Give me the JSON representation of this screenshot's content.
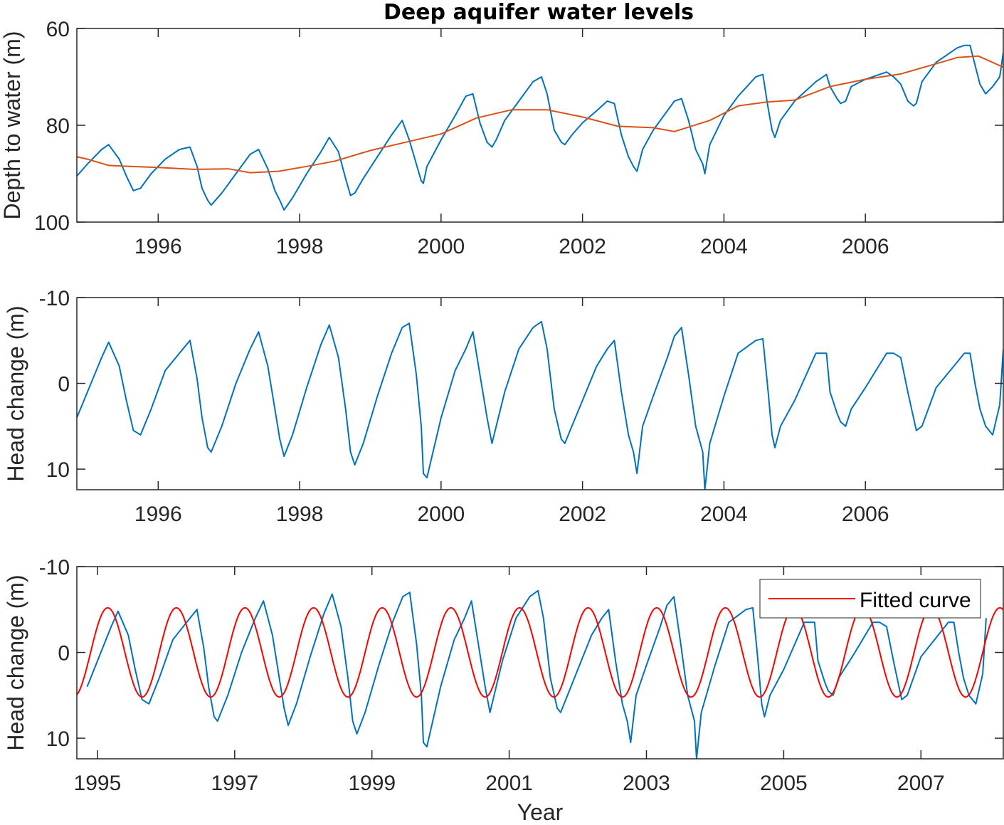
{
  "figure": {
    "title": "Deep aquifer water levels"
  },
  "chart_data": [
    {
      "type": "line",
      "title": "Deep aquifer water levels",
      "xlabel": "",
      "ylabel": "Depth to water (m)",
      "xlim": [
        1994.85,
        2007.95
      ],
      "ylim": [
        60,
        100
      ],
      "y_reversed": true,
      "xticks": [
        1996,
        1998,
        2000,
        2002,
        2004,
        2006
      ],
      "yticks": [
        60,
        80,
        100
      ],
      "grid": false,
      "series": [
        {
          "color": "#0072BD",
          "x": [
            1994.85,
            1995.0,
            1995.2,
            1995.3,
            1995.45,
            1995.55,
            1995.65,
            1995.75,
            1995.9,
            1996.1,
            1996.3,
            1996.45,
            1996.55,
            1996.62,
            1996.7,
            1996.75,
            1996.9,
            1997.1,
            1997.3,
            1997.42,
            1997.55,
            1997.65,
            1997.72,
            1997.78,
            1997.9,
            1998.1,
            1998.3,
            1998.42,
            1998.55,
            1998.65,
            1998.72,
            1998.78,
            1998.9,
            1999.1,
            1999.3,
            1999.45,
            1999.55,
            1999.65,
            1999.72,
            1999.75,
            1999.8,
            2000.0,
            2000.2,
            2000.35,
            2000.45,
            2000.55,
            2000.65,
            2000.72,
            2000.78,
            2000.9,
            2001.1,
            2001.3,
            2001.42,
            2001.5,
            2001.6,
            2001.7,
            2001.75,
            2001.85,
            2002.0,
            2002.2,
            2002.35,
            2002.45,
            2002.55,
            2002.65,
            2002.72,
            2002.77,
            2002.85,
            2003.0,
            2003.2,
            2003.3,
            2003.4,
            2003.5,
            2003.6,
            2003.7,
            2003.73,
            2003.8,
            2004.0,
            2004.2,
            2004.45,
            2004.55,
            2004.62,
            2004.68,
            2004.72,
            2004.8,
            2005.0,
            2005.3,
            2005.45,
            2005.5,
            2005.6,
            2005.65,
            2005.72,
            2005.8,
            2006.0,
            2006.3,
            2006.4,
            2006.5,
            2006.6,
            2006.68,
            2006.72,
            2006.8,
            2007.0,
            2007.3,
            2007.4,
            2007.48,
            2007.55,
            2007.62,
            2007.7,
            2007.8,
            2007.9,
            2007.95
          ],
          "y": [
            90.5,
            88.0,
            85.0,
            84.0,
            87.0,
            90.5,
            93.5,
            93.0,
            90.0,
            87.0,
            85.0,
            84.5,
            88.5,
            93.0,
            95.5,
            96.5,
            94.0,
            90.0,
            86.0,
            85.0,
            89.0,
            93.5,
            95.5,
            97.5,
            95.0,
            90.0,
            85.5,
            82.5,
            85.5,
            91.0,
            94.5,
            94.0,
            91.0,
            86.5,
            82.0,
            79.0,
            83.0,
            88.0,
            91.5,
            92.0,
            88.5,
            83.0,
            78.0,
            74.0,
            73.5,
            79.5,
            83.5,
            84.5,
            83.0,
            79.0,
            75.0,
            71.0,
            70.0,
            73.5,
            81.0,
            83.5,
            84.0,
            82.0,
            79.5,
            77.0,
            75.0,
            75.5,
            82.0,
            86.5,
            88.5,
            89.5,
            85.0,
            81.0,
            77.0,
            75.0,
            74.5,
            79.0,
            85.0,
            88.0,
            90.0,
            84.0,
            78.0,
            74.0,
            70.0,
            69.5,
            76.0,
            81.0,
            82.5,
            79.0,
            75.0,
            71.0,
            69.5,
            72.0,
            74.5,
            75.5,
            75.0,
            72.0,
            70.5,
            69.0,
            70.0,
            71.5,
            75.0,
            76.0,
            75.5,
            71.0,
            67.0,
            64.0,
            63.5,
            63.5,
            67.5,
            71.5,
            73.5,
            72.0,
            70.0,
            65.0
          ]
        },
        {
          "color": "#D95319",
          "x": [
            1994.85,
            1995.0,
            1995.3,
            1995.6,
            1996.0,
            1996.5,
            1997.0,
            1997.3,
            1997.7,
            1998.1,
            1998.5,
            1999.0,
            1999.5,
            2000.0,
            2000.5,
            2001.0,
            2001.5,
            2002.0,
            2002.5,
            2003.0,
            2003.3,
            2003.8,
            2004.2,
            2004.6,
            2005.0,
            2005.5,
            2006.0,
            2006.5,
            2007.0,
            2007.3,
            2007.6,
            2007.95
          ],
          "y": [
            86.5,
            87.0,
            88.3,
            88.5,
            88.7,
            89.1,
            89.0,
            89.8,
            89.5,
            88.5,
            87.4,
            85.2,
            83.5,
            81.8,
            78.5,
            76.8,
            76.8,
            78.3,
            80.2,
            80.5,
            81.3,
            79.0,
            76.0,
            75.2,
            74.8,
            72.0,
            70.5,
            69.4,
            67.3,
            66.0,
            65.7,
            68.0
          ]
        }
      ]
    },
    {
      "type": "line",
      "xlabel": "",
      "ylabel": "Head change  (m)",
      "xlim": [
        1994.85,
        2007.95
      ],
      "ylim": [
        -10,
        12.4
      ],
      "y_reversed": true,
      "xticks": [
        1996,
        1998,
        2000,
        2002,
        2004,
        2006
      ],
      "yticks": [
        -10,
        0,
        10
      ],
      "grid": false,
      "series": [
        {
          "color": "#0072BD",
          "x": [
            1994.85,
            1995.0,
            1995.2,
            1995.3,
            1995.45,
            1995.55,
            1995.65,
            1995.75,
            1995.9,
            1996.1,
            1996.3,
            1996.45,
            1996.55,
            1996.62,
            1996.7,
            1996.75,
            1996.9,
            1997.1,
            1997.3,
            1997.42,
            1997.55,
            1997.65,
            1997.72,
            1997.78,
            1997.9,
            1998.1,
            1998.3,
            1998.42,
            1998.55,
            1998.65,
            1998.72,
            1998.78,
            1998.9,
            1999.1,
            1999.3,
            1999.45,
            1999.55,
            1999.65,
            1999.72,
            1999.75,
            1999.8,
            2000.0,
            2000.2,
            2000.35,
            2000.45,
            2000.55,
            2000.65,
            2000.72,
            2000.78,
            2000.9,
            2001.1,
            2001.3,
            2001.42,
            2001.5,
            2001.6,
            2001.7,
            2001.75,
            2001.85,
            2002.0,
            2002.2,
            2002.35,
            2002.45,
            2002.55,
            2002.65,
            2002.72,
            2002.77,
            2002.85,
            2003.0,
            2003.2,
            2003.3,
            2003.4,
            2003.5,
            2003.6,
            2003.7,
            2003.73,
            2003.8,
            2004.0,
            2004.2,
            2004.45,
            2004.55,
            2004.62,
            2004.68,
            2004.72,
            2004.8,
            2005.0,
            2005.3,
            2005.45,
            2005.5,
            2005.6,
            2005.65,
            2005.72,
            2005.8,
            2006.0,
            2006.3,
            2006.4,
            2006.5,
            2006.6,
            2006.68,
            2006.72,
            2006.8,
            2007.0,
            2007.3,
            2007.4,
            2007.48,
            2007.55,
            2007.62,
            2007.7,
            2007.8,
            2007.9,
            2007.95
          ],
          "y": [
            4.0,
            1.0,
            -3.0,
            -4.8,
            -2.0,
            2.0,
            5.5,
            6.0,
            3.0,
            -1.5,
            -3.5,
            -5.0,
            -0.5,
            4.0,
            7.5,
            8.0,
            5.0,
            0.0,
            -4.0,
            -6.0,
            -2.0,
            3.0,
            6.5,
            8.5,
            6.0,
            0.5,
            -4.5,
            -6.8,
            -3.0,
            3.0,
            8.0,
            9.5,
            7.0,
            1.5,
            -3.5,
            -6.5,
            -7.0,
            -1.0,
            5.0,
            10.5,
            11.0,
            4.0,
            -1.5,
            -4.0,
            -6.0,
            -1.0,
            4.0,
            7.0,
            5.0,
            1.0,
            -4.0,
            -6.5,
            -7.2,
            -4.0,
            3.0,
            6.5,
            7.0,
            5.0,
            2.0,
            -2.0,
            -4.0,
            -5.0,
            1.0,
            6.0,
            8.0,
            10.5,
            5.0,
            1.5,
            -3.0,
            -5.5,
            -6.5,
            -1.0,
            5.0,
            8.0,
            12.4,
            7.0,
            1.5,
            -3.5,
            -5.0,
            -5.2,
            0.5,
            6.0,
            7.5,
            5.0,
            2.0,
            -3.5,
            -3.5,
            1.0,
            3.5,
            4.5,
            5.0,
            3.0,
            0.5,
            -3.5,
            -3.5,
            -3.0,
            1.0,
            4.0,
            5.5,
            5.0,
            0.5,
            -2.5,
            -3.5,
            -3.5,
            0.0,
            3.0,
            5.0,
            6.0,
            2.5,
            -4.0
          ]
        }
      ]
    },
    {
      "type": "line",
      "xlabel": "Year",
      "ylabel": "Head change  (m)",
      "xlim": [
        1994.7,
        2008.2
      ],
      "ylim": [
        -10,
        12.4
      ],
      "y_reversed": true,
      "xticks": [
        1995,
        1997,
        1999,
        2001,
        2003,
        2005,
        2007
      ],
      "yticks": [
        -10,
        0,
        10
      ],
      "grid": false,
      "legend": {
        "entries": [
          "Fitted curve"
        ],
        "location": "top-right"
      },
      "series": [
        {
          "color": "#0072BD",
          "x": [
            1994.85,
            1995.0,
            1995.2,
            1995.3,
            1995.45,
            1995.55,
            1995.65,
            1995.75,
            1995.9,
            1996.1,
            1996.3,
            1996.45,
            1996.55,
            1996.62,
            1996.7,
            1996.75,
            1996.9,
            1997.1,
            1997.3,
            1997.42,
            1997.55,
            1997.65,
            1997.72,
            1997.78,
            1997.9,
            1998.1,
            1998.3,
            1998.42,
            1998.55,
            1998.65,
            1998.72,
            1998.78,
            1998.9,
            1999.1,
            1999.3,
            1999.45,
            1999.55,
            1999.65,
            1999.72,
            1999.75,
            1999.8,
            2000.0,
            2000.2,
            2000.35,
            2000.45,
            2000.55,
            2000.65,
            2000.72,
            2000.78,
            2000.9,
            2001.1,
            2001.3,
            2001.42,
            2001.5,
            2001.6,
            2001.7,
            2001.75,
            2001.85,
            2002.0,
            2002.2,
            2002.35,
            2002.45,
            2002.55,
            2002.65,
            2002.72,
            2002.77,
            2002.85,
            2003.0,
            2003.2,
            2003.3,
            2003.4,
            2003.5,
            2003.6,
            2003.7,
            2003.73,
            2003.8,
            2004.0,
            2004.2,
            2004.45,
            2004.55,
            2004.62,
            2004.68,
            2004.72,
            2004.8,
            2005.0,
            2005.3,
            2005.45,
            2005.5,
            2005.6,
            2005.65,
            2005.72,
            2005.8,
            2006.0,
            2006.3,
            2006.4,
            2006.5,
            2006.6,
            2006.68,
            2006.72,
            2006.8,
            2007.0,
            2007.3,
            2007.4,
            2007.48,
            2007.55,
            2007.62,
            2007.7,
            2007.8,
            2007.9,
            2007.95
          ],
          "y": [
            4.0,
            1.0,
            -3.0,
            -4.8,
            -2.0,
            2.0,
            5.5,
            6.0,
            3.0,
            -1.5,
            -3.5,
            -5.0,
            -0.5,
            4.0,
            7.5,
            8.0,
            5.0,
            0.0,
            -4.0,
            -6.0,
            -2.0,
            3.0,
            6.5,
            8.5,
            6.0,
            0.5,
            -4.5,
            -6.8,
            -3.0,
            3.0,
            8.0,
            9.5,
            7.0,
            1.5,
            -3.5,
            -6.5,
            -7.0,
            -1.0,
            5.0,
            10.5,
            11.0,
            4.0,
            -1.5,
            -4.0,
            -6.0,
            -1.0,
            4.0,
            7.0,
            5.0,
            1.0,
            -4.0,
            -6.5,
            -7.2,
            -4.0,
            3.0,
            6.5,
            7.0,
            5.0,
            2.0,
            -2.0,
            -4.0,
            -5.0,
            1.0,
            6.0,
            8.0,
            10.5,
            5.0,
            1.5,
            -3.0,
            -5.5,
            -6.5,
            -1.0,
            5.0,
            8.0,
            12.4,
            7.0,
            1.5,
            -3.5,
            -5.0,
            -5.2,
            0.5,
            6.0,
            7.5,
            5.0,
            2.0,
            -3.5,
            -3.5,
            1.0,
            3.5,
            4.5,
            5.0,
            3.0,
            0.5,
            -3.5,
            -3.5,
            -3.0,
            1.0,
            4.0,
            5.5,
            5.0,
            0.5,
            -2.5,
            -3.5,
            -3.5,
            0.0,
            3.0,
            5.0,
            6.0,
            2.5,
            -4.0
          ]
        },
        {
          "name": "Fitted curve",
          "color": "#FF0000",
          "function": "sine",
          "amplitude": 5.2,
          "period_years": 1.0,
          "trough_at": 1995.15,
          "x_range": [
            1994.7,
            2008.2
          ]
        }
      ]
    }
  ]
}
